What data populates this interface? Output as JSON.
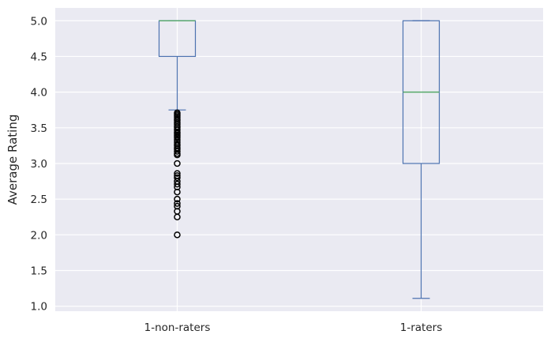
{
  "colors": {
    "plot_background": "#EAEAF2",
    "grid": "#FFFFFF",
    "box": "#4C72B0",
    "median": "#55A868",
    "flier": "#000000",
    "text": "#262626"
  },
  "chart_data": {
    "type": "box",
    "title": "",
    "xlabel": "",
    "ylabel": "Average Rating",
    "ylim": [
      0.93,
      5.18
    ],
    "yticks": [
      "1.0",
      "1.5",
      "2.0",
      "2.5",
      "3.0",
      "3.5",
      "4.0",
      "4.5",
      "5.0"
    ],
    "grid": true,
    "categories": [
      "1-non-raters",
      "1-raters"
    ],
    "boxes": [
      {
        "category": "1-non-raters",
        "whisker_low": 3.75,
        "q1": 4.5,
        "median": 5.0,
        "q3": 5.0,
        "whisker_high": 5.0,
        "outliers": [
          3.71,
          3.69,
          3.67,
          3.65,
          3.62,
          3.6,
          3.57,
          3.55,
          3.52,
          3.5,
          3.47,
          3.44,
          3.42,
          3.4,
          3.38,
          3.36,
          3.33,
          3.3,
          3.27,
          3.25,
          3.22,
          3.2,
          3.17,
          3.14,
          3.12,
          3.0,
          2.86,
          2.83,
          2.8,
          2.75,
          2.71,
          2.67,
          2.6,
          2.5,
          2.44,
          2.4,
          2.33,
          2.25,
          2.0
        ]
      },
      {
        "category": "1-raters",
        "whisker_low": 1.11,
        "q1": 3.0,
        "median": 4.0,
        "q3": 5.0,
        "whisker_high": 5.0,
        "outliers": []
      }
    ]
  }
}
